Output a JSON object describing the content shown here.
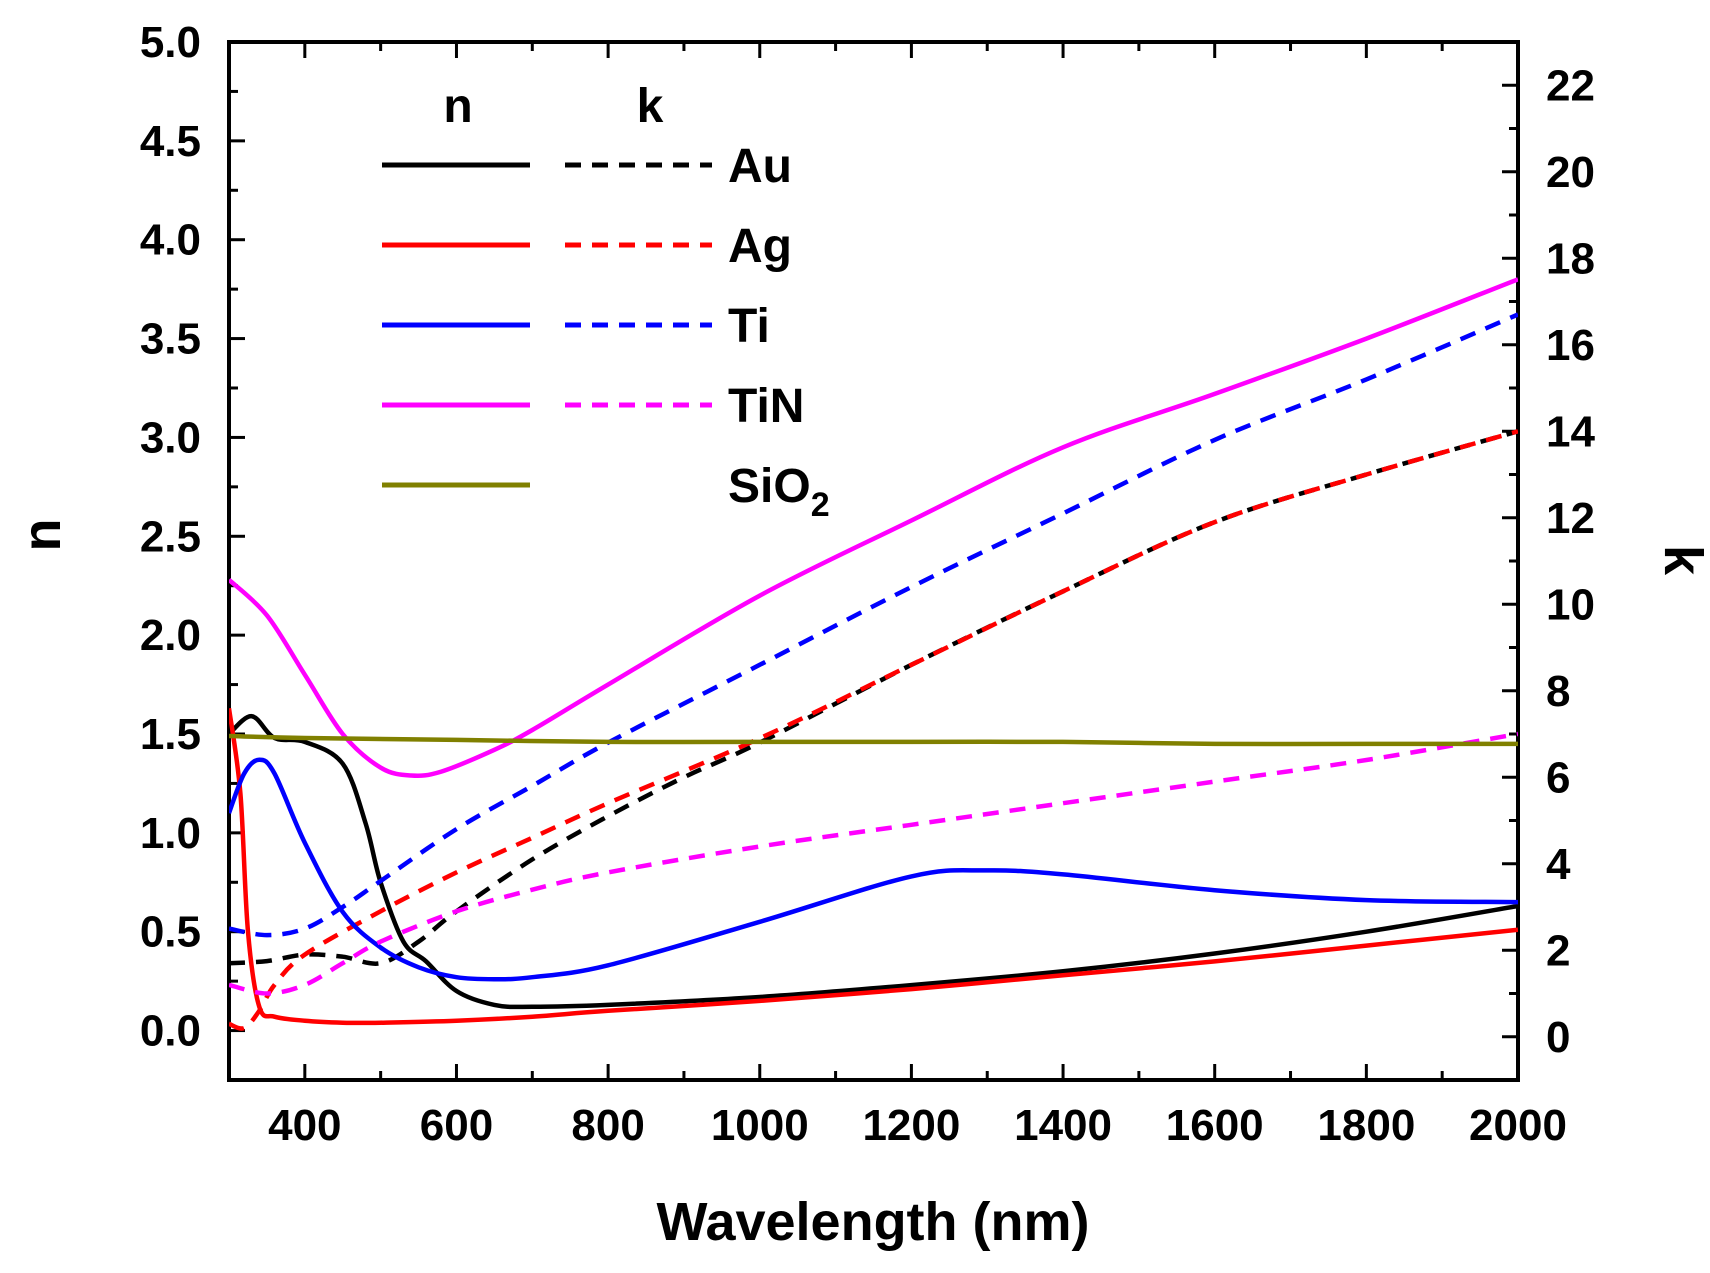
{
  "chart_data": {
    "type": "line",
    "title": "",
    "xlabel": "Wavelength (nm)",
    "ylabel": "n",
    "y2label": "k",
    "xlim": [
      300,
      2000
    ],
    "ylim": [
      -0.25,
      5.0
    ],
    "y2lim": [
      -1.0,
      23.0
    ],
    "xticks": [
      400,
      600,
      800,
      1000,
      1200,
      1400,
      1600,
      1800,
      2000
    ],
    "xtick_labels": [
      "400",
      "600",
      "800",
      "1000",
      "1200",
      "1400",
      "1600",
      "1800",
      "2000"
    ],
    "yticks": [
      0.0,
      0.5,
      1.0,
      1.5,
      2.0,
      2.5,
      3.0,
      3.5,
      4.0,
      4.5,
      5.0
    ],
    "ytick_labels": [
      "0.0",
      "0.5",
      "1.0",
      "1.5",
      "2.0",
      "2.5",
      "3.0",
      "3.5",
      "4.0",
      "4.5",
      "5.0"
    ],
    "y2ticks": [
      0,
      2,
      4,
      6,
      8,
      10,
      12,
      14,
      16,
      18,
      20,
      22
    ],
    "y2tick_labels": [
      "0",
      "2",
      "4",
      "6",
      "8",
      "10",
      "12",
      "14",
      "16",
      "18",
      "20",
      "22"
    ],
    "legend": {
      "placement": "top-left",
      "header_n": "n",
      "header_k": "k",
      "entries": [
        {
          "material": "Au",
          "color": "#000000",
          "has_k": true
        },
        {
          "material": "Ag",
          "color": "#ff0000",
          "has_k": true
        },
        {
          "material": "Ti",
          "color": "#0000ff",
          "has_k": true
        },
        {
          "material": "TiN",
          "color": "#ff00ff",
          "has_k": true
        },
        {
          "material": "SiO",
          "subscript": "2",
          "color": "#808000",
          "has_k": false
        }
      ]
    },
    "series": [
      {
        "name": "Au n",
        "axis": "left",
        "style": "solid",
        "color": "#000000",
        "x": [
          300,
          330,
          360,
          400,
          450,
          480,
          500,
          530,
          560,
          600,
          650,
          700,
          800,
          1000,
          1200,
          1400,
          1600,
          1800,
          2000
        ],
        "y": [
          1.5,
          1.59,
          1.48,
          1.46,
          1.35,
          1.05,
          0.75,
          0.45,
          0.35,
          0.2,
          0.13,
          0.12,
          0.13,
          0.17,
          0.23,
          0.3,
          0.39,
          0.5,
          0.63
        ]
      },
      {
        "name": "Au k",
        "axis": "right",
        "style": "dashed",
        "color": "#000000",
        "x": [
          300,
          350,
          400,
          450,
          500,
          550,
          600,
          700,
          800,
          900,
          1000,
          1200,
          1400,
          1600,
          1800,
          2000
        ],
        "y": [
          1.7,
          1.75,
          1.9,
          1.85,
          1.7,
          2.2,
          2.9,
          4.1,
          5.1,
          6.0,
          6.8,
          8.6,
          10.3,
          11.9,
          13.0,
          14.0
        ]
      },
      {
        "name": "Ag n",
        "axis": "left",
        "style": "solid",
        "color": "#ff0000",
        "x": [
          300,
          315,
          325,
          340,
          360,
          400,
          450,
          500,
          600,
          700,
          800,
          1000,
          1200,
          1400,
          1600,
          1800,
          2000
        ],
        "y": [
          1.63,
          1.2,
          0.5,
          0.12,
          0.07,
          0.05,
          0.04,
          0.04,
          0.05,
          0.07,
          0.1,
          0.15,
          0.21,
          0.28,
          0.35,
          0.43,
          0.51
        ]
      },
      {
        "name": "Ag k",
        "axis": "right",
        "style": "dashed",
        "color": "#ff0000",
        "x": [
          300,
          320,
          340,
          360,
          400,
          500,
          600,
          700,
          800,
          1000,
          1200,
          1400,
          1600,
          1800,
          2000
        ],
        "y": [
          0.3,
          0.2,
          0.6,
          1.2,
          1.9,
          2.9,
          3.8,
          4.6,
          5.4,
          6.9,
          8.6,
          10.3,
          11.9,
          13.0,
          14.0
        ]
      },
      {
        "name": "Ti n",
        "axis": "left",
        "style": "solid",
        "color": "#0000ff",
        "x": [
          300,
          320,
          340,
          360,
          400,
          450,
          500,
          550,
          600,
          650,
          700,
          800,
          1000,
          1200,
          1300,
          1400,
          1600,
          1800,
          2000
        ],
        "y": [
          1.1,
          1.3,
          1.37,
          1.3,
          0.95,
          0.6,
          0.42,
          0.32,
          0.27,
          0.26,
          0.27,
          0.33,
          0.55,
          0.78,
          0.81,
          0.79,
          0.71,
          0.66,
          0.65
        ]
      },
      {
        "name": "Ti k",
        "axis": "right",
        "style": "dashed",
        "color": "#0000ff",
        "x": [
          300,
          350,
          400,
          450,
          500,
          600,
          700,
          800,
          1000,
          1200,
          1400,
          1600,
          1800,
          2000
        ],
        "y": [
          2.5,
          2.35,
          2.5,
          3.0,
          3.6,
          4.8,
          5.8,
          6.8,
          8.6,
          10.4,
          12.1,
          13.8,
          15.2,
          16.7
        ]
      },
      {
        "name": "TiN n",
        "axis": "left",
        "style": "solid",
        "color": "#ff00ff",
        "x": [
          300,
          350,
          400,
          450,
          500,
          540,
          580,
          650,
          700,
          800,
          1000,
          1200,
          1400,
          1600,
          1800,
          2000
        ],
        "y": [
          2.28,
          2.1,
          1.8,
          1.5,
          1.33,
          1.29,
          1.31,
          1.42,
          1.52,
          1.75,
          2.2,
          2.58,
          2.95,
          3.22,
          3.5,
          3.8
        ]
      },
      {
        "name": "TiN k",
        "axis": "right",
        "style": "dashed",
        "color": "#ff00ff",
        "x": [
          300,
          350,
          400,
          450,
          500,
          600,
          700,
          800,
          1000,
          1200,
          1400,
          1600,
          1800,
          2000
        ],
        "y": [
          1.2,
          1.0,
          1.2,
          1.7,
          2.2,
          2.9,
          3.4,
          3.8,
          4.4,
          4.9,
          5.4,
          5.9,
          6.4,
          7.0
        ]
      },
      {
        "name": "SiO2 n",
        "axis": "left",
        "style": "solid",
        "color": "#808000",
        "x": [
          300,
          400,
          600,
          800,
          1000,
          1200,
          1400,
          1600,
          1800,
          2000
        ],
        "y": [
          1.49,
          1.48,
          1.47,
          1.46,
          1.46,
          1.46,
          1.46,
          1.45,
          1.45,
          1.45
        ]
      }
    ]
  }
}
